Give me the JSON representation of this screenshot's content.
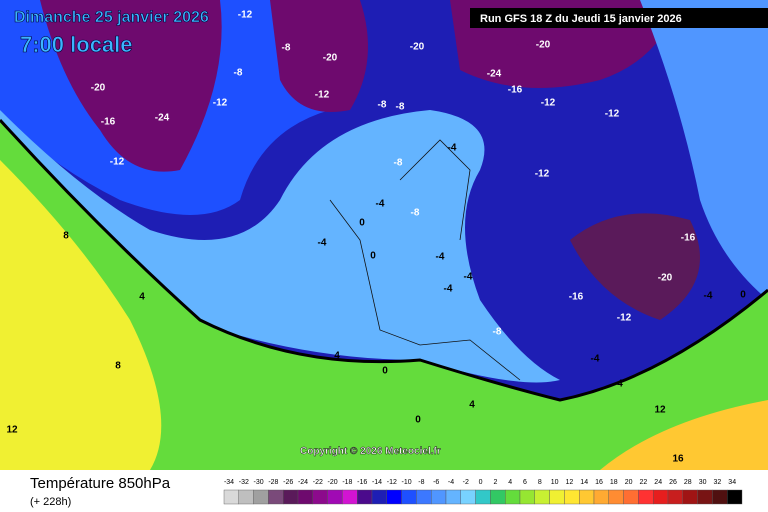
{
  "header": {
    "date": "Dimanche 25 janvier 2026",
    "time": "7:00 locale",
    "run": "Run GFS 18 Z du Jeudi 15 janvier 2026"
  },
  "copyright": "Copyright © 2026 Meteociel.fr",
  "footer": {
    "parameter": "Température 850hPa",
    "lead": "(+ 228h)"
  },
  "isotherm_labels": [
    -12,
    -8,
    -8,
    -12,
    -20,
    -16,
    -12,
    -24,
    -20,
    -12,
    -8,
    -8,
    -8,
    -4,
    -4,
    -8,
    0,
    -4,
    0,
    -4,
    -4,
    -4,
    -8,
    -12,
    -12,
    -16,
    -20,
    -20,
    -24,
    -12,
    -16,
    -16,
    -20,
    -12,
    -4,
    0,
    4,
    8,
    8,
    4,
    0,
    4,
    0,
    12,
    12,
    16,
    4,
    -4
  ],
  "legend": {
    "values": [
      -34,
      -32,
      -30,
      -28,
      -26,
      -24,
      -22,
      -20,
      -18,
      -16,
      -14,
      -12,
      -10,
      -8,
      -6,
      -4,
      -2,
      0,
      2,
      4,
      6,
      8,
      10,
      12,
      14,
      16,
      18,
      20,
      22,
      24,
      26,
      28,
      30,
      32,
      34
    ],
    "colors": [
      "#d9d9d9",
      "#bfbfbf",
      "#a0a0a0",
      "#7a4a7a",
      "#5a1a5a",
      "#6e0a6e",
      "#8c0a8c",
      "#a00ab4",
      "#d214d2",
      "#4b0a8c",
      "#1e1eb4",
      "#0000ff",
      "#1e50ff",
      "#3c78ff",
      "#5096ff",
      "#64b4ff",
      "#78d2ff",
      "#32c8c8",
      "#32c864",
      "#64dc3c",
      "#96e632",
      "#c8f032",
      "#f0f032",
      "#ffe632",
      "#ffc832",
      "#ffaa32",
      "#ff8c32",
      "#ff6e32",
      "#ff3232",
      "#e61e1e",
      "#c81e1e",
      "#a01414",
      "#781414",
      "#501010",
      "#000000"
    ]
  }
}
